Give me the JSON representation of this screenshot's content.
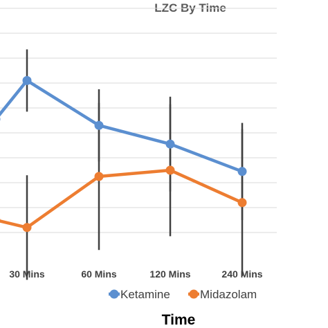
{
  "chart_data": {
    "type": "line",
    "title": "LZC By Time",
    "xlabel": "Time",
    "ylabel": "",
    "categories": [
      "",
      "30 Mins",
      "60 Mins",
      "120 Mins",
      "240 Mins"
    ],
    "ylim": [
      0,
      10
    ],
    "grid": true,
    "legend_position": "bottom",
    "series": [
      {
        "name": "Ketamine",
        "color": "#5B8FD0",
        "values": [
          5.55,
          7.1,
          5.3,
          4.55,
          3.45
        ],
        "error": [
          null,
          1.25,
          1.45,
          1.9,
          1.95
        ]
      },
      {
        "name": "Midazolam",
        "color": "#ED7D31",
        "values": [
          1.5,
          1.2,
          3.25,
          3.5,
          2.2
        ],
        "error": [
          null,
          2.1,
          2.95,
          2.65,
          2.95
        ]
      }
    ],
    "error_bar_color": "#404040"
  }
}
